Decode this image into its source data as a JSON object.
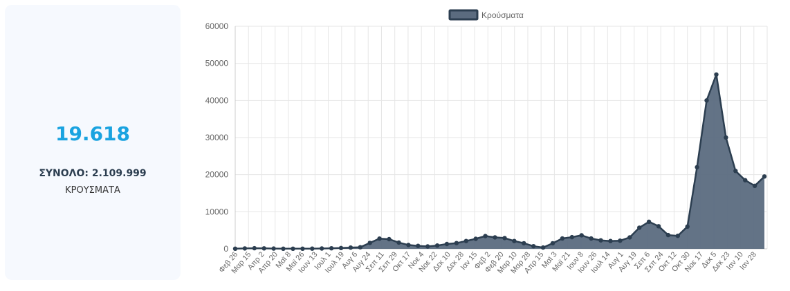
{
  "summary": {
    "latest_value": "19.618",
    "total_label": "ΣΥΝΟΛΟ: 2.109.999",
    "metric_label": "ΚΡΟΥΣΜΑΤΑ"
  },
  "colors": {
    "accent": "#1aa3e0",
    "series_line": "#2c3e50",
    "series_fill": "#5b6b7f",
    "grid": "#e6e6e6"
  },
  "chart_data": {
    "type": "area",
    "title": "",
    "xlabel": "",
    "ylabel": "",
    "ylim": [
      0,
      60000
    ],
    "yticks": [
      0,
      10000,
      20000,
      30000,
      40000,
      50000,
      60000
    ],
    "ytick_labels": [
      "0",
      "10000",
      "20000",
      "30000",
      "40000",
      "50000",
      "60000"
    ],
    "x_tick_labels": [
      "Φεβ 26",
      "Μαρ 15",
      "Απρ 2",
      "Απρ 20",
      "Μαϊ 8",
      "Μαϊ 26",
      "Ιουν 13",
      "Ιουλ 1",
      "Ιουλ 19",
      "Αυγ 6",
      "Αυγ 24",
      "Σεπ 11",
      "Σεπ 29",
      "Οκτ 17",
      "Νοε 4",
      "Νοε 22",
      "Δεκ 10",
      "Δεκ 28",
      "Ιαν 15",
      "Φεβ 2",
      "Φεβ 20",
      "Μαρ 10",
      "Μαρ 28",
      "Απρ 15",
      "Μαϊ 3",
      "Μαϊ 21",
      "Ιουν 8",
      "Ιουν 26",
      "Ιουλ 14",
      "Αυγ 1",
      "Αυγ 19",
      "Σεπ 6",
      "Σεπ 24",
      "Οκτ 12",
      "Οκτ 30",
      "Νοε 17",
      "Δεκ 5",
      "Δεκ 23",
      "Ιαν 10",
      "Ιαν 28"
    ],
    "legend": {
      "position": "top",
      "entries": [
        "Κρούσματα"
      ]
    },
    "grid": true,
    "series": [
      {
        "name": "Κρούσματα",
        "values": [
          30,
          110,
          170,
          130,
          70,
          40,
          30,
          40,
          60,
          100,
          150,
          230,
          330,
          420,
          1600,
          2750,
          2600,
          1700,
          1050,
          800,
          650,
          900,
          1300,
          1550,
          2100,
          2700,
          3450,
          3100,
          2900,
          2100,
          1500,
          700,
          350,
          1500,
          2800,
          3150,
          3650,
          2800,
          2300,
          2100,
          2200,
          3100,
          5700,
          7300,
          6100,
          3700,
          3500,
          6000,
          22000,
          40000,
          47000,
          30000,
          21000,
          18500,
          17000,
          19500
        ]
      }
    ]
  }
}
